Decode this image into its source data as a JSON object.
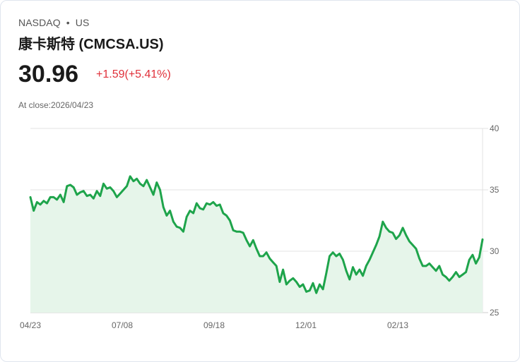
{
  "header": {
    "exchange": "NASDAQ",
    "separator": "•",
    "region": "US",
    "title": "康卡斯特 (CMCSA.US)",
    "price": "30.96",
    "change": "+1.59(+5.41%)",
    "close_label": "At close:2026/04/23"
  },
  "colors": {
    "line": "#1ea44b",
    "fill": "#e6f5ea",
    "change_up": "#e0303a",
    "grid": "#e3e3e3"
  },
  "chart_data": {
    "type": "area",
    "title": "CMCSA.US 1Y price",
    "xlabel": "",
    "ylabel": "",
    "ylim": [
      25,
      40
    ],
    "yticks": [
      40,
      35,
      30,
      25
    ],
    "xtick_labels": [
      "04/23",
      "07/08",
      "09/18",
      "12/01",
      "02/13"
    ],
    "grid": true,
    "legend": "none",
    "series": [
      {
        "name": "CMCSA",
        "values": [
          34.4,
          33.3,
          34.0,
          33.8,
          34.1,
          33.9,
          34.4,
          34.4,
          34.2,
          34.6,
          34.0,
          35.3,
          35.4,
          35.2,
          34.6,
          34.8,
          34.9,
          34.5,
          34.6,
          34.3,
          34.9,
          34.5,
          35.5,
          35.1,
          35.2,
          34.9,
          34.4,
          34.7,
          35.0,
          35.3,
          36.1,
          35.7,
          35.9,
          35.5,
          35.3,
          35.8,
          35.2,
          34.6,
          35.6,
          35.0,
          33.6,
          32.9,
          33.3,
          32.4,
          32.0,
          31.9,
          31.6,
          32.8,
          33.3,
          33.1,
          33.9,
          33.5,
          33.4,
          33.9,
          33.8,
          34.0,
          33.7,
          33.8,
          33.1,
          32.9,
          32.5,
          31.7,
          31.6,
          31.6,
          31.5,
          30.9,
          30.4,
          30.9,
          30.2,
          29.6,
          29.6,
          29.9,
          29.4,
          29.1,
          28.8,
          27.5,
          28.5,
          27.3,
          27.6,
          27.8,
          27.5,
          27.1,
          27.3,
          26.7,
          26.8,
          27.4,
          26.6,
          27.3,
          26.9,
          28.2,
          29.6,
          29.9,
          29.6,
          29.8,
          29.3,
          28.4,
          27.7,
          28.7,
          28.1,
          28.5,
          28.0,
          28.8,
          29.3,
          29.9,
          30.5,
          31.2,
          32.4,
          31.9,
          31.6,
          31.5,
          31.0,
          31.3,
          31.9,
          31.3,
          30.8,
          30.5,
          30.2,
          29.4,
          28.8,
          28.8,
          29.0,
          28.7,
          28.4,
          28.8,
          28.1,
          27.9,
          27.6,
          27.9,
          28.3,
          27.9,
          28.1,
          28.3,
          29.3,
          29.7,
          29.0,
          29.5,
          30.96
        ]
      }
    ]
  }
}
